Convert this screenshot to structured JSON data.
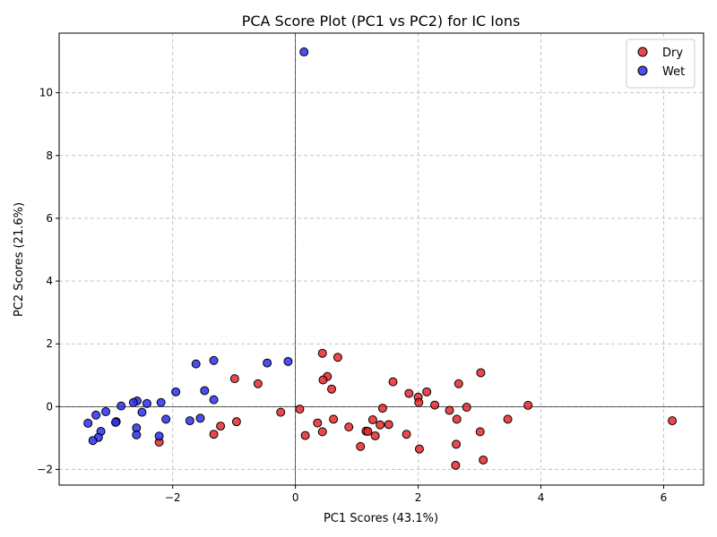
{
  "chart_data": {
    "type": "scatter",
    "title": "PCA Score Plot (PC1 vs PC2) for IC Ions",
    "xlabel": "PC1 Scores (43.1%)",
    "ylabel": "PC2 Scores (21.6%)",
    "xlim": [
      -3.85,
      6.65
    ],
    "ylim": [
      -2.5,
      11.9
    ],
    "xticks": [
      -2,
      0,
      2,
      4,
      6
    ],
    "yticks": [
      -2,
      0,
      2,
      4,
      6,
      8,
      10
    ],
    "grid": true,
    "legend_position": "top-right",
    "series": [
      {
        "name": "Dry",
        "color": "#e8282d",
        "points": [
          [
            0.44,
            1.7
          ],
          [
            0.69,
            1.57
          ],
          [
            0.52,
            0.96
          ],
          [
            0.45,
            0.85
          ],
          [
            0.59,
            0.56
          ],
          [
            1.59,
            0.79
          ],
          [
            -0.99,
            0.89
          ],
          [
            -0.61,
            0.73
          ],
          [
            3.02,
            1.08
          ],
          [
            2.66,
            0.73
          ],
          [
            1.85,
            0.42
          ],
          [
            2.14,
            0.47
          ],
          [
            2.0,
            0.3
          ],
          [
            2.01,
            0.13
          ],
          [
            2.27,
            0.05
          ],
          [
            2.51,
            -0.12
          ],
          [
            2.79,
            -0.02
          ],
          [
            3.79,
            0.04
          ],
          [
            1.42,
            -0.05
          ],
          [
            0.07,
            -0.08
          ],
          [
            -0.24,
            -0.18
          ],
          [
            0.36,
            -0.52
          ],
          [
            0.62,
            -0.4
          ],
          [
            1.26,
            -0.42
          ],
          [
            1.38,
            -0.58
          ],
          [
            1.52,
            -0.57
          ],
          [
            2.63,
            -0.4
          ],
          [
            3.46,
            -0.4
          ],
          [
            6.14,
            -0.45
          ],
          [
            -0.96,
            -0.48
          ],
          [
            -1.22,
            -0.62
          ],
          [
            0.87,
            -0.65
          ],
          [
            1.15,
            -0.78
          ],
          [
            1.18,
            -0.79
          ],
          [
            0.44,
            -0.8
          ],
          [
            1.3,
            -0.93
          ],
          [
            0.16,
            -0.92
          ],
          [
            1.81,
            -0.88
          ],
          [
            3.01,
            -0.8
          ],
          [
            -1.33,
            -0.88
          ],
          [
            -2.22,
            -1.13
          ],
          [
            1.06,
            -1.27
          ],
          [
            2.62,
            -1.2
          ],
          [
            2.02,
            -1.35
          ],
          [
            3.06,
            -1.7
          ],
          [
            2.61,
            -1.87
          ]
        ]
      },
      {
        "name": "Wet",
        "color": "#2b2ff0",
        "points": [
          [
            0.14,
            11.3
          ],
          [
            -1.33,
            1.47
          ],
          [
            -1.62,
            1.36
          ],
          [
            -0.46,
            1.39
          ],
          [
            -0.12,
            1.44
          ],
          [
            -1.48,
            0.51
          ],
          [
            -1.95,
            0.47
          ],
          [
            -1.33,
            0.22
          ],
          [
            -2.58,
            0.18
          ],
          [
            -2.64,
            0.13
          ],
          [
            -2.19,
            0.13
          ],
          [
            -2.42,
            0.1
          ],
          [
            -2.84,
            0.02
          ],
          [
            -3.09,
            -0.16
          ],
          [
            -2.5,
            -0.18
          ],
          [
            -3.25,
            -0.27
          ],
          [
            -1.55,
            -0.37
          ],
          [
            -2.11,
            -0.4
          ],
          [
            -1.72,
            -0.45
          ],
          [
            -2.92,
            -0.48
          ],
          [
            -2.93,
            -0.5
          ],
          [
            -3.38,
            -0.53
          ],
          [
            -2.59,
            -0.68
          ],
          [
            -3.17,
            -0.79
          ],
          [
            -2.59,
            -0.9
          ],
          [
            -2.22,
            -0.94
          ],
          [
            -3.21,
            -0.98
          ],
          [
            -3.3,
            -1.08
          ]
        ]
      }
    ]
  }
}
